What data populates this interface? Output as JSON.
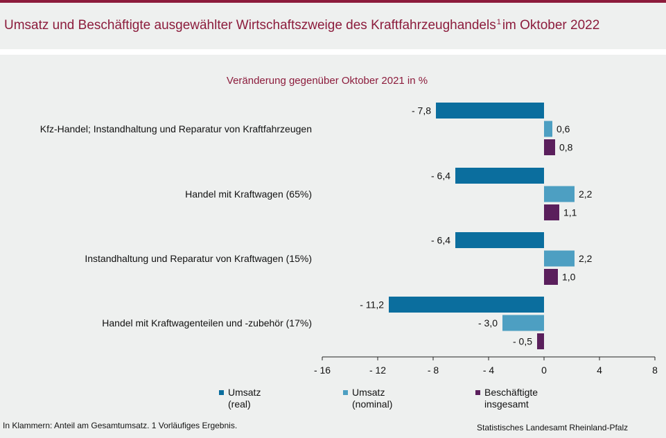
{
  "header": {
    "title_main": "Umsatz und Beschäftigte ausgewählter Wirtschaftszweige des Kraftfahrzeughandels",
    "title_sup": "1",
    "title_end": "im Oktober 2022"
  },
  "chart_data": {
    "type": "bar",
    "orientation": "horizontal",
    "subtitle": "Veränderung gegenüber Oktober 2021 in %",
    "categories": [
      "Kfz-Handel; Instandhaltung und Reparatur von Kraftfahrzeugen",
      "Handel mit Kraftwagen (65%)",
      "Instandhaltung und Reparatur von Kraftwagen (15%)",
      "Handel mit Kraftwagenteilen und -zubehör (17%)"
    ],
    "series": [
      {
        "name": "Umsatz\n(real)",
        "values": [
          -7.8,
          -6.4,
          -6.4,
          -11.2
        ],
        "labels": [
          "- 7,8",
          "- 6,4",
          "- 6,4",
          "- 11,2"
        ],
        "color": "#0b6e9e"
      },
      {
        "name": "Umsatz\n(nominal)",
        "values": [
          0.6,
          2.2,
          2.2,
          -3.0
        ],
        "labels": [
          "0,6",
          "2,2",
          "2,2",
          "- 3,0"
        ],
        "color": "#4d9fc2"
      },
      {
        "name": "Beschäftigte\ninsgesamt",
        "values": [
          0.8,
          1.1,
          1.0,
          -0.5
        ],
        "labels": [
          "0,8",
          "1,1",
          "1,0",
          "- 0,5"
        ],
        "color": "#5a1f5c"
      }
    ],
    "xlim": [
      -16,
      8
    ],
    "xticks": [
      -16,
      -12,
      -8,
      -4,
      0,
      4,
      8
    ],
    "xtick_labels": [
      "- 16",
      "- 12",
      "- 8",
      "- 4",
      "0",
      "4",
      "8"
    ],
    "legend": "bottom"
  },
  "footer": {
    "note": "In Klammern: Anteil am Gesamtumsatz. 1 Vorläufiges Ergebnis.",
    "source": "Statistisches Landesamt Rheinland-Pfalz"
  }
}
